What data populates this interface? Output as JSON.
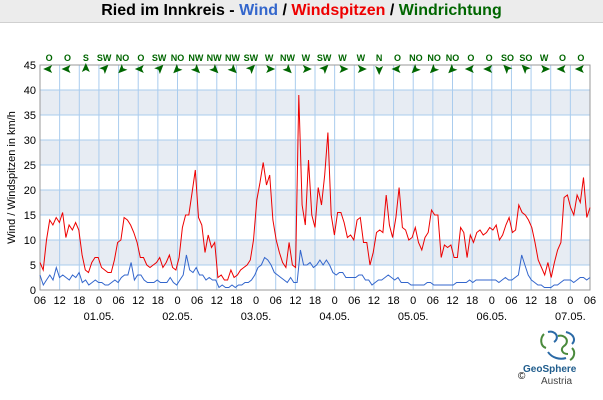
{
  "title": {
    "station": "Ried im Innkreis",
    "sep1": " - ",
    "wind": "Wind",
    "sep2": " / ",
    "gusts": "Windspitzen",
    "sep3": " / ",
    "direction": "Windrichtung"
  },
  "colors": {
    "wind": "#3366cc",
    "gusts": "#ee0000",
    "direction": "#006600",
    "grid": "#aaccee",
    "band_light": "#ffffff",
    "band_dark": "#e7ecf3"
  },
  "logo": {
    "name": "GeoSphere",
    "country": "Austria",
    "copyright": "©"
  },
  "chart_data": {
    "type": "line",
    "ylabel": "Wind / Windspitzen in km/h",
    "ylim": [
      0,
      45
    ],
    "yticks": [
      0,
      5,
      10,
      15,
      20,
      25,
      30,
      35,
      40,
      45
    ],
    "xlim": [
      0,
      168
    ],
    "x_hours_from_start": true,
    "x_ticks": [
      "06",
      "12",
      "18",
      "0",
      "06",
      "12",
      "18",
      "0",
      "06",
      "12",
      "18",
      "0",
      "06",
      "12",
      "18",
      "0",
      "06",
      "12",
      "18",
      "0",
      "06",
      "12",
      "18",
      "0",
      "06",
      "12",
      "18",
      "0",
      "06",
      "12",
      "18"
    ],
    "date_labels": [
      {
        "label": "01.05.",
        "hour": 18
      },
      {
        "label": "02.05.",
        "hour": 42
      },
      {
        "label": "03.05.",
        "hour": 66
      },
      {
        "label": "04.05.",
        "hour": 90
      },
      {
        "label": "05.05.",
        "hour": 114
      },
      {
        "label": "06.05.",
        "hour": 138
      },
      {
        "label": "07.05.",
        "hour": 162
      }
    ],
    "gusts": [
      5.5,
      4,
      10,
      14,
      13,
      14.5,
      13.5,
      15.5,
      10.5,
      13,
      12,
      13.5,
      12,
      7,
      4,
      3.5,
      5.5,
      6.5,
      6.5,
      4.5,
      4,
      3.5,
      3.5,
      6,
      9.5,
      10,
      14.5,
      14,
      13,
      11.5,
      9.5,
      6.5,
      6.5,
      5,
      4.5,
      5,
      5.5,
      6.5,
      4.5,
      5.5,
      7,
      4.5,
      4,
      6.5,
      12.5,
      15,
      15,
      19.5,
      24,
      14.5,
      13,
      7.5,
      11,
      8.5,
      9.5,
      2.5,
      3,
      2,
      2,
      4,
      2.5,
      3,
      4,
      4.5,
      5,
      6,
      10,
      18,
      21.5,
      25.5,
      21,
      23,
      14,
      10,
      7.5,
      5.5,
      4.5,
      9.5,
      5,
      4.5,
      39,
      17,
      13,
      26,
      15,
      12.5,
      20.5,
      17,
      23,
      31.5,
      15,
      11,
      15.5,
      15.5,
      13.5,
      10.5,
      11,
      10,
      14,
      14.5,
      9.5,
      9.5,
      5,
      7.5,
      11.5,
      12,
      11.5,
      19,
      13,
      10.5,
      14.5,
      20.5,
      12.5,
      12,
      10,
      10.5,
      12.5,
      9.5,
      8,
      10.5,
      11.5,
      16,
      15,
      15,
      6.5,
      9,
      8.5,
      9,
      6.5,
      6.5,
      12.5,
      11.5,
      6.5,
      11,
      9.5,
      11.5,
      12,
      11,
      11.5,
      12.5,
      12,
      13,
      10,
      11,
      13,
      14.5,
      11.5,
      12,
      17,
      15.5,
      15,
      14,
      12.5,
      9.5,
      6,
      4.5,
      3,
      5.5,
      2.5,
      5.5,
      8,
      9.5,
      18.5,
      19,
      16.5,
      15,
      19,
      17.5,
      22.5,
      14.5,
      16.5
    ],
    "wind": [
      3,
      1,
      2,
      3,
      2,
      4.5,
      2.5,
      3,
      2.5,
      2,
      3,
      2.5,
      3.5,
      1.5,
      2,
      1,
      1.5,
      2,
      1.5,
      1.5,
      1,
      1,
      1.5,
      2,
      1.5,
      2.5,
      3,
      3,
      5.5,
      2,
      3,
      3,
      2,
      1.5,
      1.5,
      1.5,
      2,
      1.5,
      1.5,
      1.5,
      2.5,
      1.5,
      1,
      2,
      3,
      7,
      4,
      3.5,
      4.5,
      3,
      3,
      2,
      2.5,
      2,
      2,
      0.5,
      1,
      0.5,
      0.5,
      1,
      0.5,
      1,
      1,
      1.5,
      1.5,
      2,
      3,
      4.5,
      5,
      6.5,
      6,
      5,
      3.5,
      3,
      2.5,
      2,
      1.5,
      2.5,
      1.5,
      1.5,
      8,
      5,
      5,
      5.5,
      4.5,
      5,
      6,
      5,
      6,
      5,
      3.5,
      3,
      3.5,
      3.5,
      2.5,
      2.5,
      2.5,
      2.5,
      3,
      3,
      2,
      2,
      1,
      1.5,
      2,
      2,
      2.5,
      3,
      2.5,
      2,
      2.5,
      1.5,
      1.5,
      1.5,
      1,
      1,
      1,
      1,
      1,
      1.5,
      1.5,
      1,
      1,
      1,
      1,
      1,
      1,
      1,
      1.5,
      1.5,
      1.5,
      1.5,
      2,
      1.5,
      2,
      2,
      2,
      2,
      2,
      2,
      2,
      1.5,
      2,
      2.5,
      2,
      2,
      2.5,
      3,
      7,
      5,
      3,
      2,
      1.5,
      1,
      1,
      0.5,
      0.5,
      0.5,
      1,
      1,
      1.5,
      2,
      2,
      2,
      1.5,
      2,
      2.5,
      2.5,
      2,
      2.5
    ],
    "directions": [
      "O",
      "O",
      "S",
      "SW",
      "NO",
      "O",
      "SW",
      "NO",
      "NW",
      "NW",
      "NW",
      "SW",
      "W",
      "NW",
      "W",
      "SW",
      "W",
      "W",
      "N",
      "O",
      "NO",
      "NO",
      "NO",
      "O",
      "O",
      "SO",
      "SO",
      "W",
      "O",
      "O"
    ],
    "direction_angles": [
      270,
      270,
      0,
      45,
      225,
      270,
      45,
      225,
      135,
      135,
      135,
      45,
      90,
      135,
      90,
      45,
      90,
      90,
      180,
      270,
      225,
      225,
      225,
      270,
      270,
      315,
      315,
      90,
      270,
      270
    ]
  }
}
